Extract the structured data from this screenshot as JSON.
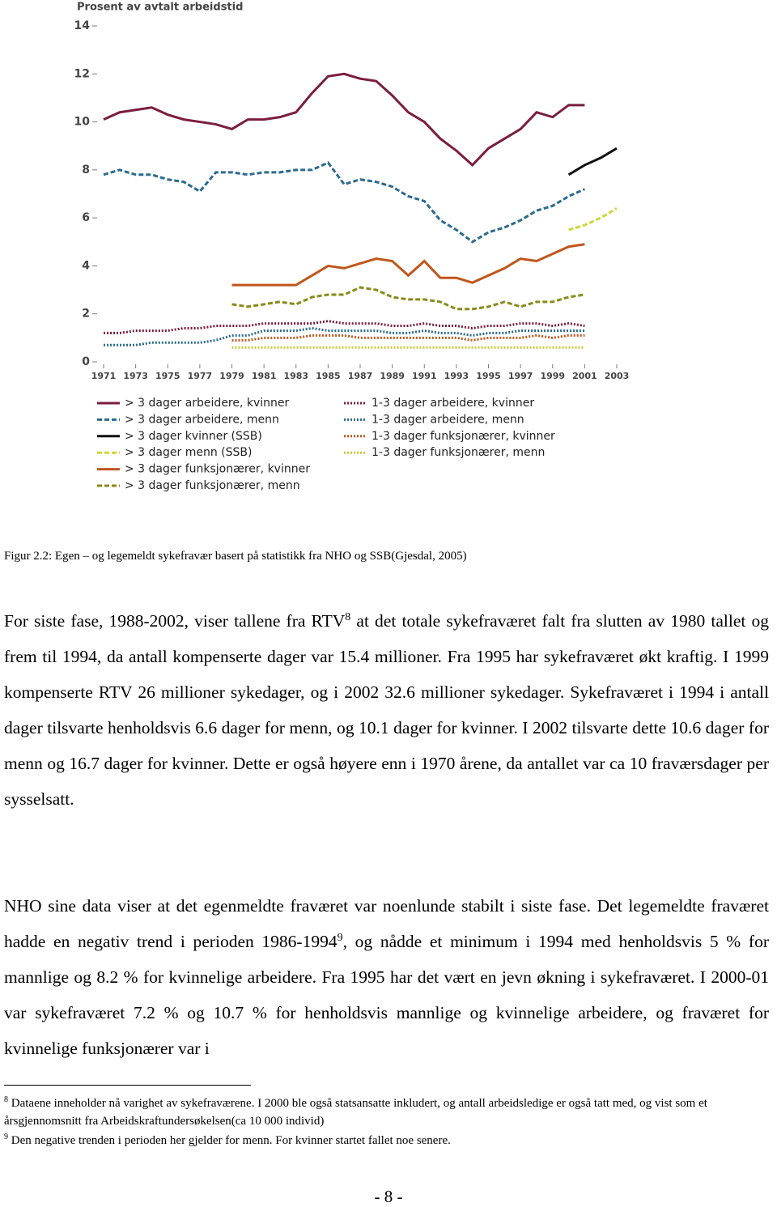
{
  "chart_data": {
    "type": "line",
    "y_label": "Prosent av avtalt arbeidstid",
    "x": [
      1971,
      1972,
      1973,
      1974,
      1975,
      1976,
      1977,
      1978,
      1979,
      1980,
      1981,
      1982,
      1983,
      1984,
      1985,
      1986,
      1987,
      1988,
      1989,
      1990,
      1991,
      1992,
      1993,
      1994,
      1995,
      1996,
      1997,
      1998,
      1999,
      2000,
      2001,
      2002,
      2003
    ],
    "xlim": [
      1971,
      2003
    ],
    "xticks": [
      1971,
      1973,
      1975,
      1977,
      1979,
      1981,
      1983,
      1985,
      1987,
      1989,
      1991,
      1993,
      1995,
      1997,
      1999,
      2001,
      2003
    ],
    "ylim": [
      0,
      14
    ],
    "yticks": [
      0,
      2,
      4,
      6,
      8,
      10,
      12,
      14
    ],
    "grid": false,
    "series": [
      {
        "name": "> 3 dager arbeidere, kvinner",
        "color": "#7b1d3f",
        "style": "solid",
        "values": [
          10.1,
          10.4,
          10.5,
          10.6,
          10.3,
          10.1,
          10.0,
          9.9,
          9.7,
          10.1,
          10.1,
          10.2,
          10.4,
          11.2,
          11.9,
          12.0,
          11.8,
          11.7,
          11.1,
          10.4,
          10.0,
          9.3,
          8.8,
          8.2,
          8.9,
          9.3,
          9.7,
          10.4,
          10.2,
          10.7,
          10.7,
          null,
          null
        ]
      },
      {
        "name": "> 3 dager arbeidere, menn",
        "color": "#2a6b8f",
        "style": "dashed",
        "values": [
          7.8,
          8.0,
          7.8,
          7.8,
          7.6,
          7.5,
          7.1,
          7.9,
          7.9,
          7.8,
          7.9,
          7.9,
          8.0,
          8.0,
          8.3,
          7.4,
          7.6,
          7.5,
          7.3,
          6.9,
          6.7,
          5.9,
          5.5,
          5.0,
          5.4,
          5.6,
          5.9,
          6.3,
          6.5,
          6.9,
          7.2,
          null,
          null
        ]
      },
      {
        "name": "> 3 dager kvinner (SSB)",
        "color": "#111111",
        "style": "solid",
        "values": [
          null,
          null,
          null,
          null,
          null,
          null,
          null,
          null,
          null,
          null,
          null,
          null,
          null,
          null,
          null,
          null,
          null,
          null,
          null,
          null,
          null,
          null,
          null,
          null,
          null,
          null,
          null,
          null,
          null,
          7.8,
          8.2,
          8.5,
          8.9
        ]
      },
      {
        "name": "> 3 dager menn (SSB)",
        "color": "#cfd63c",
        "style": "dashed",
        "values": [
          null,
          null,
          null,
          null,
          null,
          null,
          null,
          null,
          null,
          null,
          null,
          null,
          null,
          null,
          null,
          null,
          null,
          null,
          null,
          null,
          null,
          null,
          null,
          null,
          null,
          null,
          null,
          null,
          null,
          5.5,
          5.7,
          6.0,
          6.4
        ]
      },
      {
        "name": "> 3 dager funksjonærer, kvinner",
        "color": "#c0561b",
        "style": "solid",
        "values": [
          null,
          null,
          null,
          null,
          null,
          null,
          null,
          null,
          3.2,
          3.2,
          3.2,
          3.2,
          3.2,
          3.6,
          4.0,
          3.9,
          4.1,
          4.3,
          4.2,
          3.6,
          4.2,
          3.5,
          3.5,
          3.3,
          3.6,
          3.9,
          4.3,
          4.2,
          4.5,
          4.8,
          4.9,
          null,
          null
        ]
      },
      {
        "name": "> 3 dager funksjonærer, menn",
        "color": "#8a8a1a",
        "style": "dashed",
        "values": [
          null,
          null,
          null,
          null,
          null,
          null,
          null,
          null,
          2.4,
          2.3,
          2.4,
          2.5,
          2.4,
          2.7,
          2.8,
          2.8,
          3.1,
          3.0,
          2.7,
          2.6,
          2.6,
          2.5,
          2.2,
          2.2,
          2.3,
          2.5,
          2.3,
          2.5,
          2.5,
          2.7,
          2.8,
          null,
          null
        ]
      },
      {
        "name": "1-3 dager arbeidere, kvinner",
        "color": "#7b1d3f",
        "style": "dotted",
        "values": [
          1.2,
          1.2,
          1.3,
          1.3,
          1.3,
          1.4,
          1.4,
          1.5,
          1.5,
          1.5,
          1.6,
          1.6,
          1.6,
          1.6,
          1.7,
          1.6,
          1.6,
          1.6,
          1.5,
          1.5,
          1.6,
          1.5,
          1.5,
          1.4,
          1.5,
          1.5,
          1.6,
          1.6,
          1.5,
          1.6,
          1.5,
          null,
          null
        ]
      },
      {
        "name": "1-3 dager arbeidere, menn",
        "color": "#2a6b8f",
        "style": "dotted",
        "values": [
          0.7,
          0.7,
          0.7,
          0.8,
          0.8,
          0.8,
          0.8,
          0.9,
          1.1,
          1.1,
          1.3,
          1.3,
          1.3,
          1.4,
          1.3,
          1.3,
          1.3,
          1.3,
          1.2,
          1.2,
          1.3,
          1.2,
          1.2,
          1.1,
          1.2,
          1.2,
          1.3,
          1.3,
          1.3,
          1.3,
          1.3,
          null,
          null
        ]
      },
      {
        "name": "1-3 dager funksjonærer, kvinner",
        "color": "#c0561b",
        "style": "dotted",
        "values": [
          null,
          null,
          null,
          null,
          null,
          null,
          null,
          null,
          0.9,
          0.9,
          1.0,
          1.0,
          1.0,
          1.1,
          1.1,
          1.1,
          1.0,
          1.0,
          1.0,
          1.0,
          1.0,
          1.0,
          1.0,
          0.9,
          1.0,
          1.0,
          1.0,
          1.1,
          1.0,
          1.1,
          1.1,
          null,
          null
        ]
      },
      {
        "name": "1-3 dager funksjonærer, menn",
        "color": "#c8c83a",
        "style": "dotted",
        "values": [
          null,
          null,
          null,
          null,
          null,
          null,
          null,
          null,
          0.6,
          0.6,
          0.6,
          0.6,
          0.6,
          0.6,
          0.6,
          0.6,
          0.6,
          0.6,
          0.6,
          0.6,
          0.6,
          0.6,
          0.6,
          0.6,
          0.6,
          0.6,
          0.6,
          0.6,
          0.6,
          0.6,
          0.6,
          null,
          null
        ]
      }
    ]
  },
  "caption": "Figur 2.2: Egen – og legemeldt sykefravær basert på statistikk fra NHO og SSB(Gjesdal, 2005)",
  "paragraphs": [
    {
      "before": "For siste fase, 1988-2002, viser tallene fra RTV",
      "sup": "8",
      "after": " at det totale sykefraværet falt fra slutten av 1980 tallet og frem til 1994, da antall kompenserte dager var 15.4 millioner. Fra 1995 har sykefraværet økt kraftig. I 1999 kompenserte RTV 26 millioner sykedager, og i 2002 32.6 millioner sykedager. Sykefraværet i 1994 i antall dager tilsvarte henholdsvis 6.6 dager for menn, og 10.1 dager for kvinner. I 2002 tilsvarte dette 10.6 dager for menn og 16.7 dager for kvinner. Dette er også høyere enn i 1970 årene, da antallet var ca 10 fraværsdager per sysselsatt."
    },
    {
      "before": "NHO sine data viser at det egenmeldte fraværet var noenlunde stabilt i siste fase. Det legemeldte fraværet hadde en negativ trend i perioden 1986-1994",
      "sup": "9",
      "after": ", og nådde et minimum i 1994 med henholdsvis 5 % for mannlige og 8.2 % for kvinnelige arbeidere. Fra 1995 har det vært en jevn økning i sykefraværet. I 2000-01 var sykefraværet 7.2 % og 10.7 % for henholdsvis mannlige og kvinnelige arbeidere, og fraværet for kvinnelige funksjonærer var i"
    }
  ],
  "footnotes": [
    {
      "mark": "8",
      "text": "Dataene inneholder nå varighet av sykefraværene. I 2000 ble også statsansatte inkludert, og antall arbeidsledige er også tatt med, og vist som et årsgjennomsnitt fra Arbeidskraftundersøkelsen(ca 10 000 individ)"
    },
    {
      "mark": "9",
      "text": "Den negative trenden i perioden her gjelder for menn. For kvinner startet fallet noe senere."
    }
  ],
  "page_number": "- 8 -"
}
